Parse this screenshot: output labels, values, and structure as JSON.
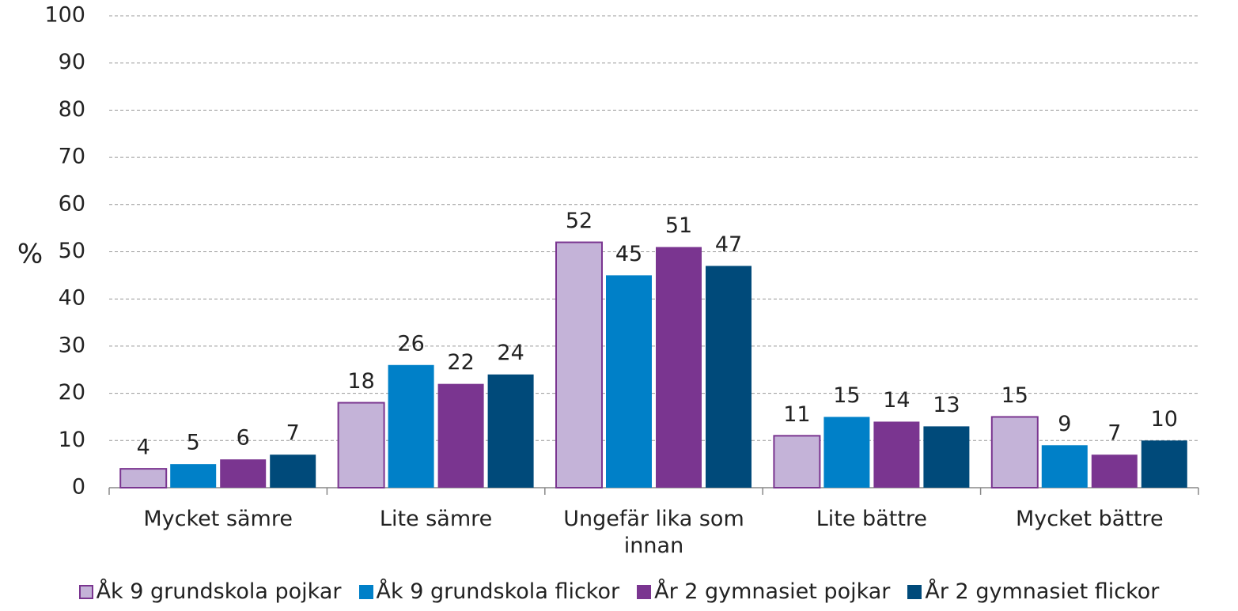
{
  "chart_data": {
    "type": "bar",
    "y_label": "%",
    "categories": [
      "Mycket sämre",
      "Lite sämre",
      "Ungefär lika som innan",
      "Lite bättre",
      "Mycket bättre"
    ],
    "series": [
      {
        "name": "Åk 9 grundskola pojkar",
        "color": "#c4b3d8",
        "values": [
          4,
          18,
          52,
          11,
          15
        ]
      },
      {
        "name": "Åk 9 grundskola flickor",
        "color": "#0080c8",
        "values": [
          5,
          26,
          45,
          15,
          9
        ]
      },
      {
        "name": "År 2 gymnasiet pojkar",
        "color": "#7a3590",
        "values": [
          6,
          22,
          51,
          14,
          7
        ]
      },
      {
        "name": "År 2 gymnasiet flickor",
        "color": "#004a7a",
        "values": [
          7,
          24,
          47,
          13,
          10
        ]
      }
    ],
    "ylim": [
      0,
      100
    ],
    "yticks": [
      0,
      10,
      20,
      30,
      40,
      50,
      60,
      70,
      80,
      90,
      100
    ],
    "grid": true,
    "legend": "bottom"
  }
}
